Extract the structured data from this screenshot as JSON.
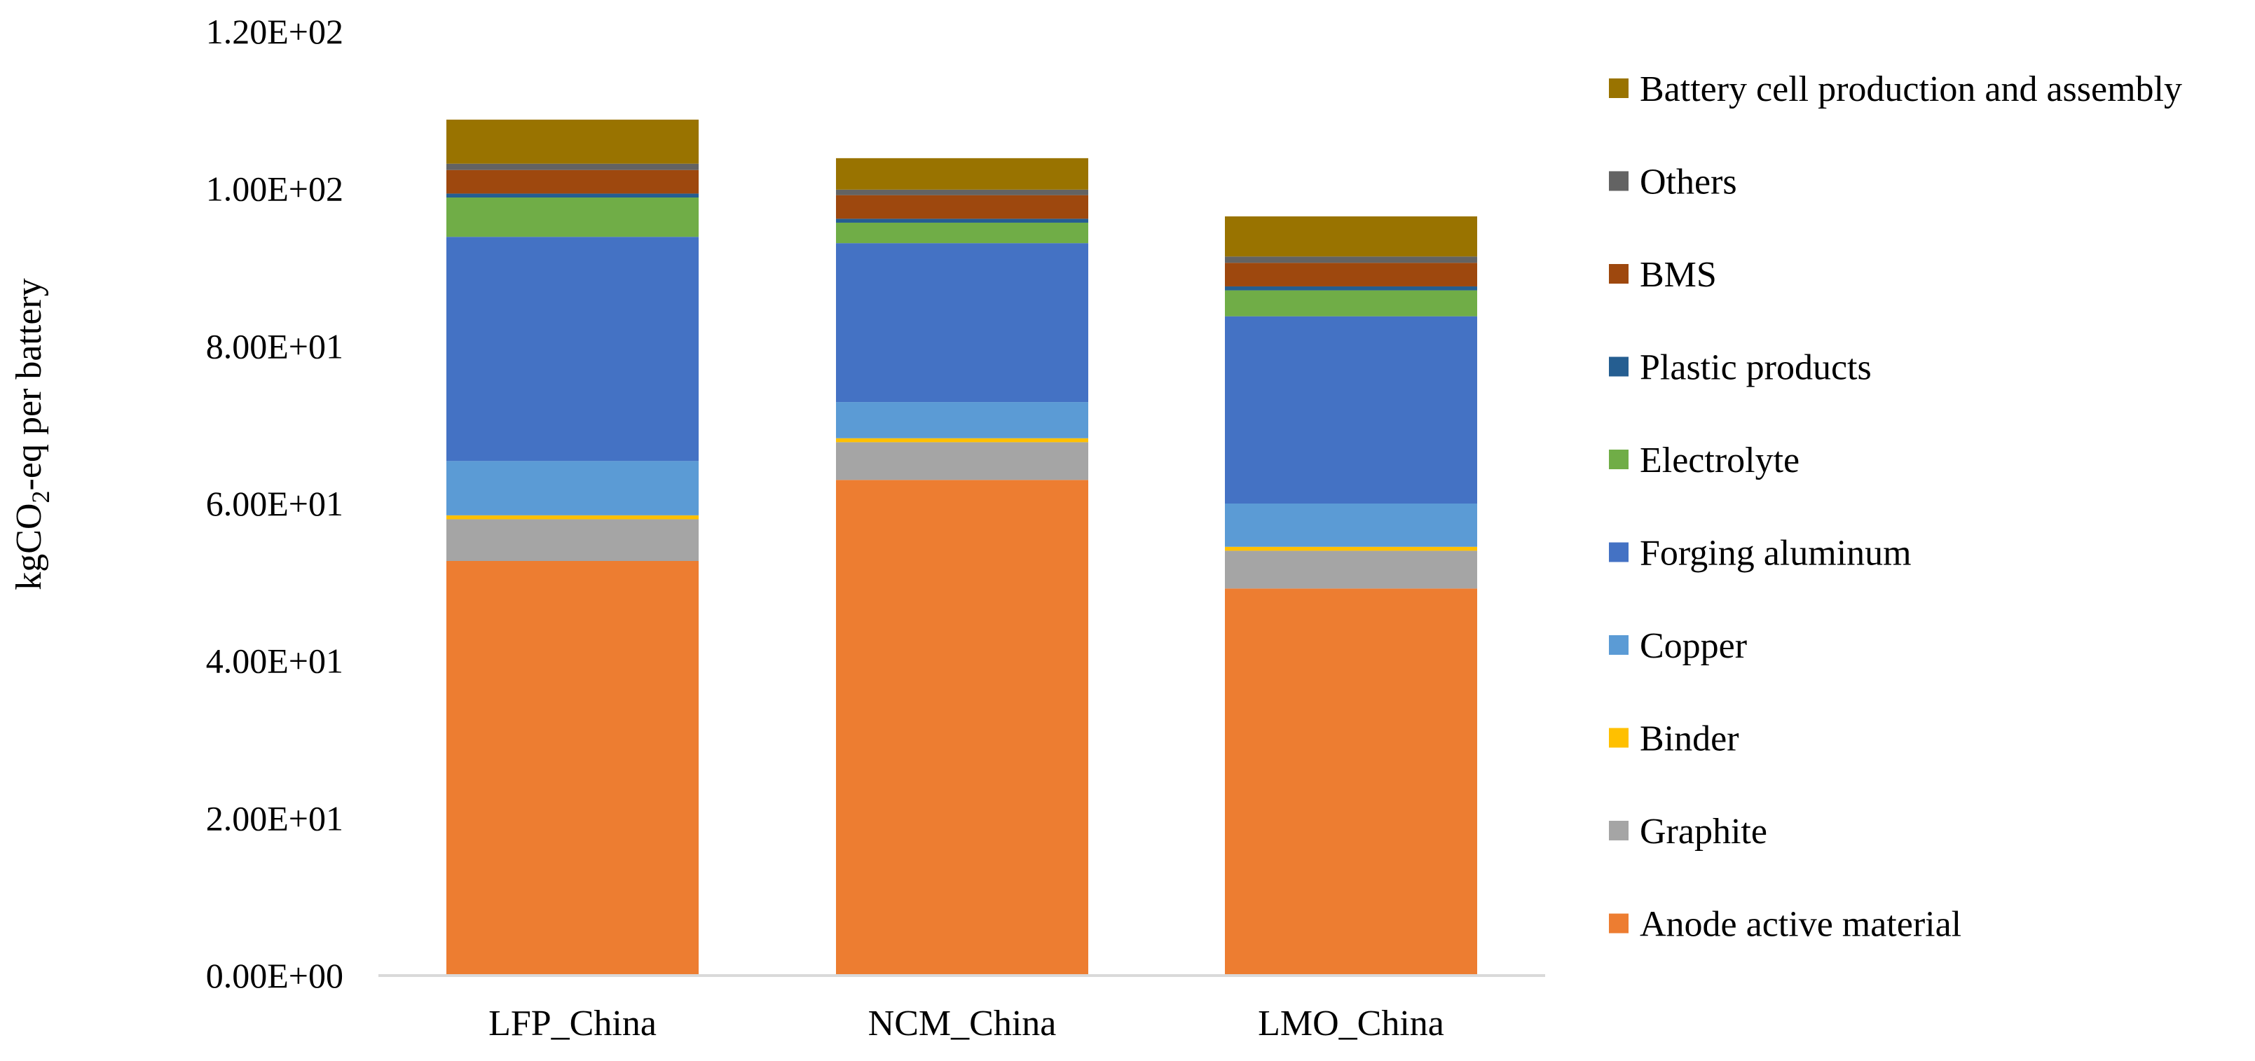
{
  "chart_data": {
    "type": "bar",
    "stacked": true,
    "title": "",
    "xlabel": "",
    "ylabel_parts": [
      "kgCO",
      "2",
      "-eq per battery"
    ],
    "ylim": [
      0,
      120
    ],
    "ytick_values": [
      0,
      20,
      40,
      60,
      80,
      100,
      120
    ],
    "ytick_labels": [
      "0.00E+00",
      "2.00E+01",
      "4.00E+01",
      "6.00E+01",
      "8.00E+01",
      "1.00E+02",
      "1.20E+02"
    ],
    "categories": [
      "LFP_China",
      "NCM_China",
      "LMO_China"
    ],
    "legend_position": "right",
    "series": [
      {
        "name": "Anode active material",
        "color": "#ED7D31",
        "values": [
          52.7,
          63.0,
          49.2
        ]
      },
      {
        "name": "Graphite",
        "color": "#A5A5A5",
        "values": [
          5.3,
          4.8,
          4.8
        ]
      },
      {
        "name": "Binder",
        "color": "#FFC000",
        "values": [
          0.5,
          0.5,
          0.5
        ]
      },
      {
        "name": "Copper",
        "color": "#5B9BD5",
        "values": [
          6.9,
          4.6,
          5.5
        ]
      },
      {
        "name": "Forging aluminum",
        "color": "#4472C4",
        "values": [
          28.5,
          20.2,
          23.8
        ]
      },
      {
        "name": "Electrolyte",
        "color": "#70AD47",
        "values": [
          5.0,
          2.6,
          3.3
        ]
      },
      {
        "name": "Plastic products",
        "color": "#255E91",
        "values": [
          0.5,
          0.5,
          0.5
        ]
      },
      {
        "name": "BMS",
        "color": "#9E480E",
        "values": [
          3.0,
          3.0,
          3.0
        ]
      },
      {
        "name": "Others",
        "color": "#636363",
        "values": [
          0.8,
          0.7,
          0.8
        ]
      },
      {
        "name": "Battery cell production and assembly",
        "color": "#997300",
        "values": [
          5.6,
          4.0,
          5.1
        ]
      }
    ]
  }
}
